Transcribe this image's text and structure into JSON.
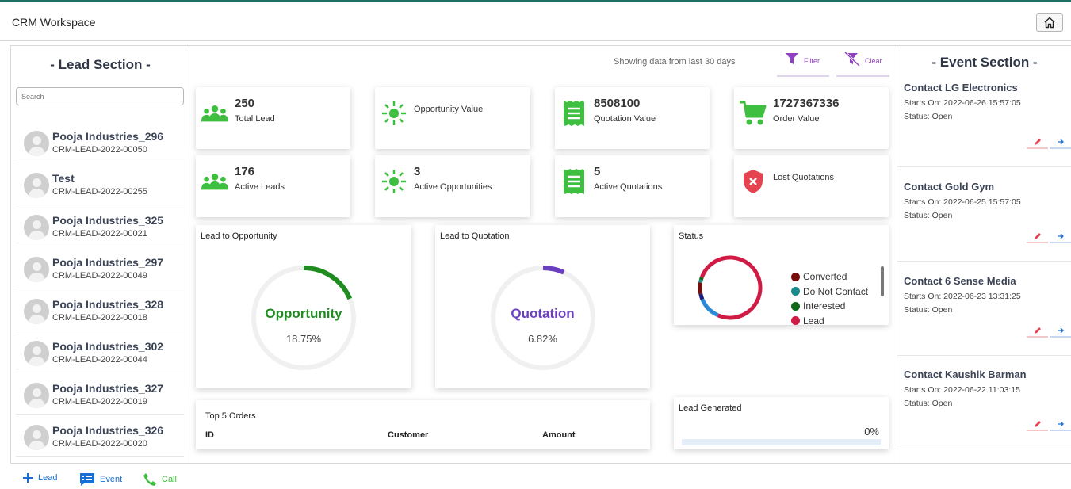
{
  "app": {
    "title": "CRM Workspace"
  },
  "lead_section": {
    "title": "- Lead Section -",
    "search_placeholder": "Search",
    "leads": [
      {
        "name": "Pooja Industries_296",
        "code": "CRM-LEAD-2022-00050"
      },
      {
        "name": "Test",
        "code": "CRM-LEAD-2022-00255"
      },
      {
        "name": "Pooja Industries_325",
        "code": "CRM-LEAD-2022-00021"
      },
      {
        "name": "Pooja Industries_297",
        "code": "CRM-LEAD-2022-00049"
      },
      {
        "name": "Pooja Industries_328",
        "code": "CRM-LEAD-2022-00018"
      },
      {
        "name": "Pooja Industries_302",
        "code": "CRM-LEAD-2022-00044"
      },
      {
        "name": "Pooja Industries_327",
        "code": "CRM-LEAD-2022-00019"
      },
      {
        "name": "Pooja Industries_326",
        "code": "CRM-LEAD-2022-00020"
      }
    ]
  },
  "toolbar": {
    "range_text": "Showing data from last 30 days",
    "filter_label": "Filter",
    "clear_label": "Clear"
  },
  "stats": {
    "total_lead": {
      "value": "250",
      "label": "Total Lead"
    },
    "opportunity_value": {
      "label": "Opportunity Value"
    },
    "quotation_value": {
      "value": "8508100",
      "label": "Quotation Value"
    },
    "order_value": {
      "value": "1727367336",
      "label": "Order Value"
    },
    "active_leads": {
      "value": "176",
      "label": "Active Leads"
    },
    "active_opportunities": {
      "value": "3",
      "label": "Active Opportunities"
    },
    "active_quotations": {
      "value": "5",
      "label": "Active Quotations"
    },
    "lost_quotations": {
      "label": "Lost Quotations"
    }
  },
  "lead_to_opportunity": {
    "title": "Lead to Opportunity",
    "label": "Opportunity",
    "percent": "18.75%",
    "fraction": 0.1875,
    "color": "#1e8c1e"
  },
  "lead_to_quotation": {
    "title": "Lead to Quotation",
    "label": "Quotation",
    "percent": "6.82%",
    "fraction": 0.0682,
    "color": "#6a3fc1"
  },
  "status_chart": {
    "title": "Status",
    "legend": [
      {
        "name": "Converted",
        "color": "#7a0c0c"
      },
      {
        "name": "Do Not Contact",
        "color": "#1a8a8a"
      },
      {
        "name": "Interested",
        "color": "#0f6a1a"
      },
      {
        "name": "Lead",
        "color": "#d01c45"
      }
    ],
    "chart_data": {
      "type": "pie",
      "style": "donut",
      "slices": [
        {
          "name": "Lead",
          "fraction": 0.76,
          "color": "#d01c45"
        },
        {
          "name": "Open (blue)",
          "fraction": 0.12,
          "color": "#2a8ad6"
        },
        {
          "name": "Navy",
          "fraction": 0.03,
          "color": "#1a1f7a"
        },
        {
          "name": "Converted",
          "fraction": 0.06,
          "color": "#7a0c0c"
        },
        {
          "name": "Do Not Contact",
          "fraction": 0.015,
          "color": "#1a8a8a"
        },
        {
          "name": "Interested",
          "fraction": 0.015,
          "color": "#0f6a1a"
        }
      ]
    }
  },
  "top_orders": {
    "title": "Top 5 Orders",
    "columns": [
      "ID",
      "Customer",
      "Amount"
    ]
  },
  "lead_generated": {
    "title": "Lead Generated",
    "percent": "0%",
    "fraction": 0
  },
  "event_section": {
    "title": "- Event Section -",
    "events": [
      {
        "name": "Contact LG Electronics",
        "start": "Starts On: 2022-06-26 15:57:05",
        "status": "Status: Open"
      },
      {
        "name": "Contact Gold Gym",
        "start": "Starts On: 2022-06-25 15:57:05",
        "status": "Status: Open"
      },
      {
        "name": "Contact 6 Sense Media",
        "start": "Starts On: 2022-06-23 13:31:25",
        "status": "Status: Open"
      },
      {
        "name": "Contact Kaushik Barman",
        "start": "Starts On: 2022-06-22 11:03:15",
        "status": "Status: Open"
      }
    ]
  },
  "bottom_bar": {
    "lead_label": "Lead",
    "event_label": "Event",
    "call_label": "Call"
  },
  "colors": {
    "green": "#3fbf3f",
    "purple": "#8f3fc0",
    "red": "#e5434f",
    "blue": "#1a6fd6"
  }
}
